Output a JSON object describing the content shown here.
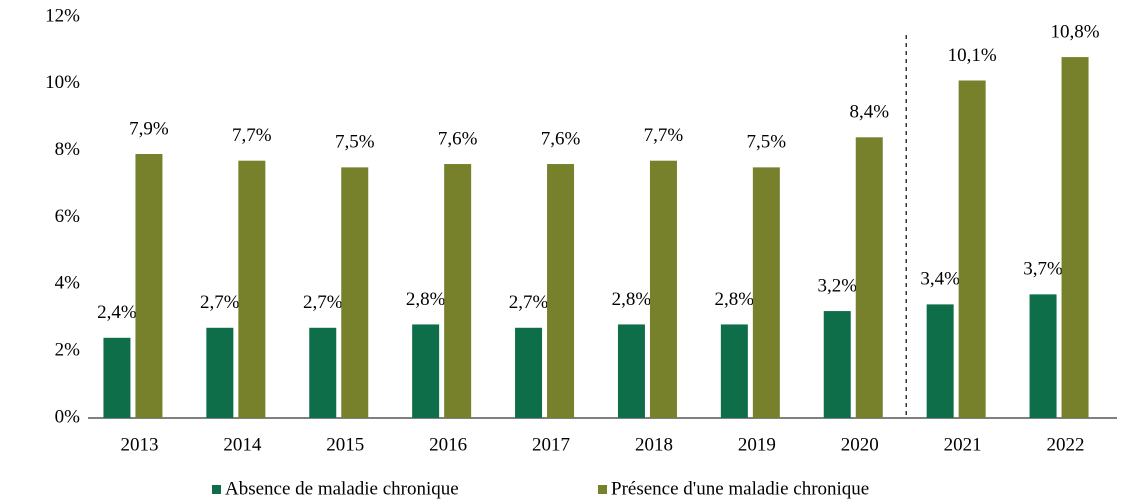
{
  "chart_data": {
    "type": "bar",
    "categories": [
      "2013",
      "2014",
      "2015",
      "2016",
      "2017",
      "2018",
      "2019",
      "2020",
      "2021",
      "2022"
    ],
    "series": [
      {
        "name": "Absence de maladie chronique",
        "color": "#0e6e4a",
        "values": [
          2.4,
          2.7,
          2.7,
          2.8,
          2.7,
          2.8,
          2.8,
          3.2,
          3.4,
          3.7
        ],
        "value_labels": [
          "2,4%",
          "2,7%",
          "2,7%",
          "2,8%",
          "2,7%",
          "2,8%",
          "2,8%",
          "3,2%",
          "3,4%",
          "3,7%"
        ]
      },
      {
        "name": "Présence d'une maladie chronique",
        "color": "#77802a",
        "values": [
          7.9,
          7.7,
          7.5,
          7.6,
          7.6,
          7.7,
          7.5,
          8.4,
          10.1,
          10.8
        ],
        "value_labels": [
          "7,9%",
          "7,7%",
          "7,5%",
          "7,6%",
          "7,6%",
          "7,7%",
          "7,5%",
          "8,4%",
          "10,1%",
          "10,8%"
        ]
      }
    ],
    "ylim": [
      0,
      12
    ],
    "yticks": [
      {
        "value": 0,
        "label": "0%"
      },
      {
        "value": 2,
        "label": "2%"
      },
      {
        "value": 4,
        "label": "4%"
      },
      {
        "value": 6,
        "label": "6%"
      },
      {
        "value": 8,
        "label": "8%"
      },
      {
        "value": 10,
        "label": "10%"
      },
      {
        "value": 12,
        "label": "12%"
      }
    ],
    "grid": false,
    "legend": "bottom"
  }
}
